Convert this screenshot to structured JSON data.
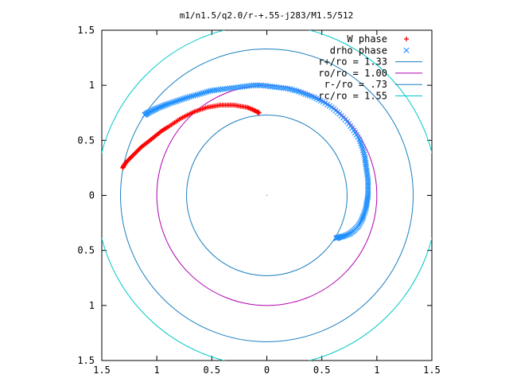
{
  "chart_data": {
    "type": "scatter",
    "title": "m1/n1.5/q2.0/r-+.55-j283/M1.5/512",
    "xlabel": "",
    "ylabel": "",
    "xlim": [
      -1.5,
      1.5
    ],
    "ylim": [
      -1.5,
      1.5
    ],
    "xticks": [
      {
        "value": -1.5,
        "label": "1.5"
      },
      {
        "value": -1.0,
        "label": "1"
      },
      {
        "value": -0.5,
        "label": "0.5"
      },
      {
        "value": 0.0,
        "label": "0"
      },
      {
        "value": 0.5,
        "label": "0.5"
      },
      {
        "value": 1.0,
        "label": "1"
      },
      {
        "value": 1.5,
        "label": "1.5"
      }
    ],
    "yticks": [
      {
        "value": 1.5,
        "label": "1.5"
      },
      {
        "value": 1.0,
        "label": "1"
      },
      {
        "value": 0.5,
        "label": "0.5"
      },
      {
        "value": 0.0,
        "label": "0"
      },
      {
        "value": -0.5,
        "label": "0.5"
      },
      {
        "value": -1.0,
        "label": "1"
      },
      {
        "value": -1.5,
        "label": "1.5"
      }
    ],
    "grid": false,
    "legend_position": "top-right",
    "series": [
      {
        "name": "W phase",
        "marker": "+",
        "color": "#ff0000",
        "points": [
          [
            -1.31,
            0.25
          ],
          [
            -1.3,
            0.27
          ],
          [
            -1.28,
            0.3
          ],
          [
            -1.25,
            0.33
          ],
          [
            -1.22,
            0.36
          ],
          [
            -1.18,
            0.4
          ],
          [
            -1.14,
            0.44
          ],
          [
            -1.1,
            0.47
          ],
          [
            -1.05,
            0.51
          ],
          [
            -1.0,
            0.55
          ],
          [
            -0.95,
            0.59
          ],
          [
            -0.9,
            0.62
          ],
          [
            -0.84,
            0.66
          ],
          [
            -0.78,
            0.7
          ],
          [
            -0.72,
            0.73
          ],
          [
            -0.66,
            0.76
          ],
          [
            -0.6,
            0.78
          ],
          [
            -0.54,
            0.8
          ],
          [
            -0.48,
            0.81
          ],
          [
            -0.42,
            0.82
          ],
          [
            -0.36,
            0.82
          ],
          [
            -0.3,
            0.82
          ],
          [
            -0.24,
            0.81
          ],
          [
            -0.18,
            0.8
          ],
          [
            -0.13,
            0.78
          ],
          [
            -0.09,
            0.76
          ],
          [
            -0.07,
            0.75
          ]
        ]
      },
      {
        "name": "drho phase",
        "marker": "x",
        "color": "#1f8fff",
        "points": [
          [
            -1.11,
            0.73
          ],
          [
            -1.08,
            0.75
          ],
          [
            -1.04,
            0.77
          ],
          [
            -1.0,
            0.79
          ],
          [
            -0.95,
            0.81
          ],
          [
            -0.9,
            0.83
          ],
          [
            -0.84,
            0.85
          ],
          [
            -0.78,
            0.87
          ],
          [
            -0.72,
            0.89
          ],
          [
            -0.65,
            0.91
          ],
          [
            -0.58,
            0.93
          ],
          [
            -0.51,
            0.95
          ],
          [
            -0.44,
            0.96
          ],
          [
            -0.36,
            0.97
          ],
          [
            -0.28,
            0.98
          ],
          [
            -0.2,
            0.99
          ],
          [
            -0.12,
            1.0
          ],
          [
            -0.05,
            1.0
          ],
          [
            0.03,
            0.99
          ],
          [
            0.11,
            0.98
          ],
          [
            0.19,
            0.97
          ],
          [
            0.27,
            0.95
          ],
          [
            0.35,
            0.92
          ],
          [
            0.43,
            0.89
          ],
          [
            0.51,
            0.85
          ],
          [
            0.59,
            0.8
          ],
          [
            0.66,
            0.74
          ],
          [
            0.73,
            0.67
          ],
          [
            0.79,
            0.59
          ],
          [
            0.84,
            0.51
          ],
          [
            0.87,
            0.43
          ],
          [
            0.89,
            0.35
          ],
          [
            0.9,
            0.28
          ],
          [
            0.91,
            0.21
          ],
          [
            0.92,
            0.14
          ],
          [
            0.92,
            0.07
          ],
          [
            0.92,
            0.0
          ],
          [
            0.91,
            -0.06
          ],
          [
            0.9,
            -0.12
          ],
          [
            0.88,
            -0.18
          ],
          [
            0.86,
            -0.23
          ],
          [
            0.83,
            -0.28
          ],
          [
            0.79,
            -0.32
          ],
          [
            0.75,
            -0.35
          ],
          [
            0.7,
            -0.37
          ],
          [
            0.66,
            -0.38
          ],
          [
            0.63,
            -0.39
          ]
        ]
      },
      {
        "name": "r+/ro = 1.33",
        "type": "circle",
        "radius": 1.33,
        "color": "#1a7fbf"
      },
      {
        "name": "ro/ro = 1.00",
        "type": "circle",
        "radius": 1.0,
        "color": "#b000b0"
      },
      {
        "name": "r-/ro = .73",
        "type": "circle",
        "radius": 0.73,
        "color": "#1a7fbf"
      },
      {
        "name": "rc/ro = 1.55",
        "type": "circle",
        "radius": 1.55,
        "color": "#00c8c8"
      }
    ]
  }
}
